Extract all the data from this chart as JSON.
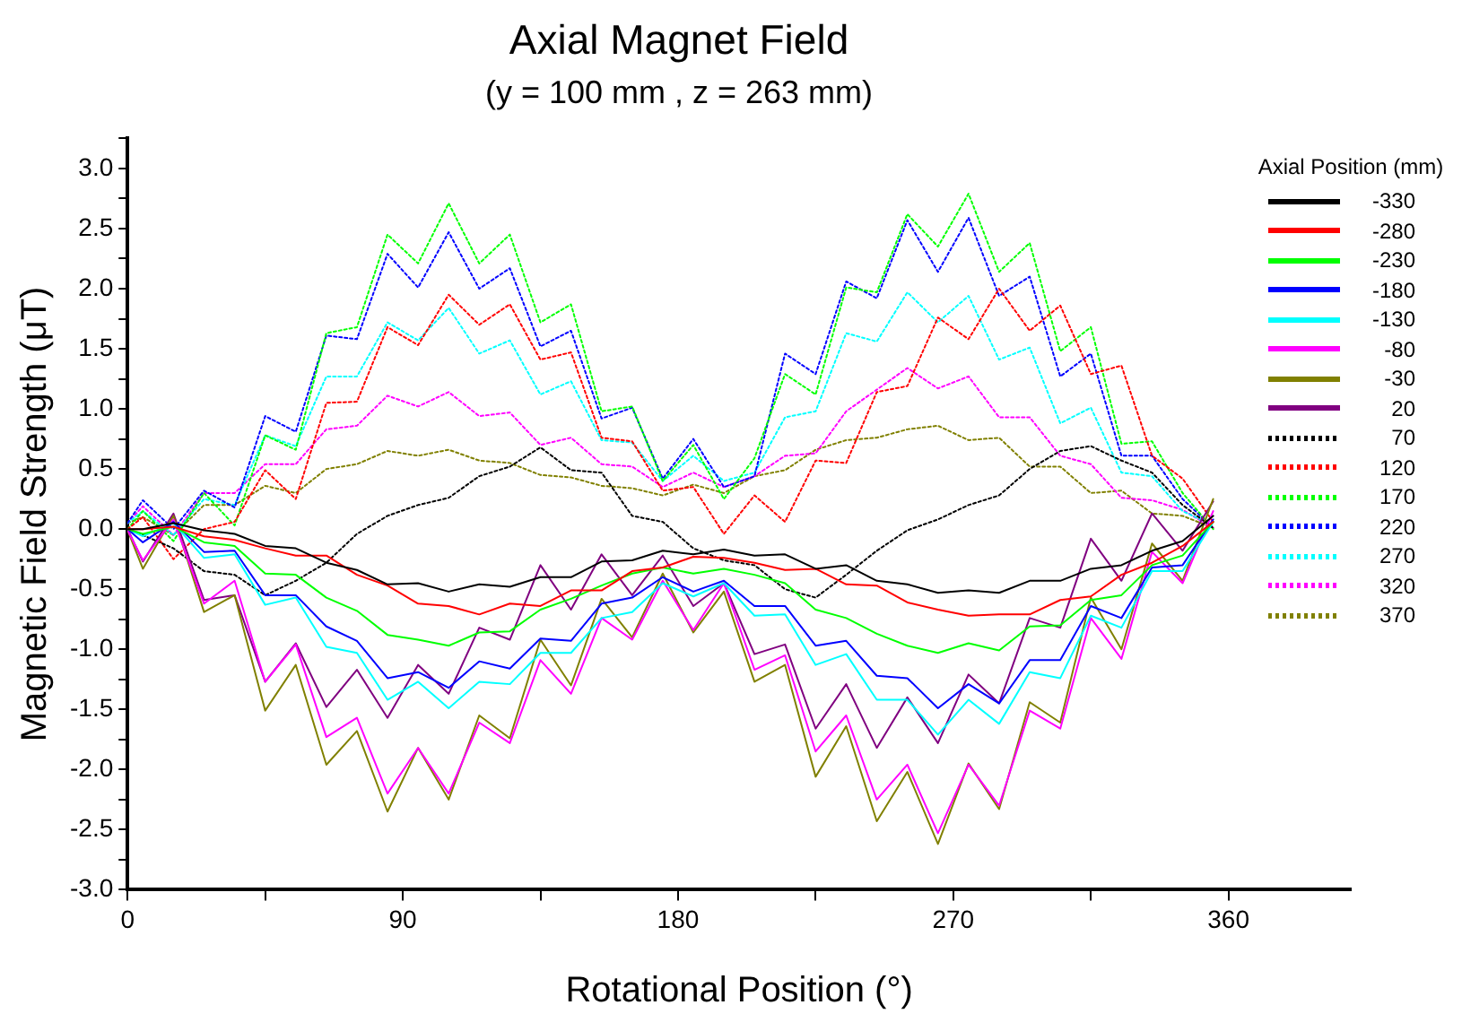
{
  "chart_data": {
    "type": "line",
    "title": "Axial Magnet Field",
    "subtitle": "(y = 100 mm , z = 263 mm)",
    "xlabel": "Rotational Position (°)",
    "ylabel": "Magnetic Field Strength (μT)",
    "legend_title": "Axial Position (mm)",
    "legend": "top right",
    "grid": false,
    "marker": "none",
    "x": [
      0,
      5,
      15,
      25,
      35,
      45,
      55,
      65,
      75,
      85,
      95,
      105,
      115,
      125,
      135,
      145,
      155,
      165,
      175,
      185,
      195,
      205,
      215,
      225,
      235,
      245,
      255,
      265,
      275,
      285,
      295,
      305,
      315,
      325,
      335,
      345,
      355
    ],
    "xlim": [
      0,
      400
    ],
    "xticks": [
      0,
      {
        "value": 45,
        "label": null
      },
      90,
      {
        "value": 135,
        "label": null
      },
      180,
      {
        "value": 225,
        "label": null
      },
      270,
      {
        "value": 315,
        "label": null
      },
      360
    ],
    "ylim": [
      -3,
      3.25
    ],
    "yticks": [
      {
        "value": -3,
        "label": "-3.0"
      },
      {
        "value": -2.75,
        "label": null
      },
      {
        "value": -2.5,
        "label": "-2.5"
      },
      {
        "value": -2.25,
        "label": null
      },
      {
        "value": -2,
        "label": "-2.0"
      },
      {
        "value": -1.75,
        "label": null
      },
      {
        "value": -1.5,
        "label": "-1.5"
      },
      {
        "value": -1.25,
        "label": null
      },
      {
        "value": -1,
        "label": "-1.0"
      },
      {
        "value": -0.75,
        "label": null
      },
      {
        "value": -0.5,
        "label": "-0.5"
      },
      {
        "value": -0.25,
        "label": null
      },
      {
        "value": 0,
        "label": "0.0"
      },
      {
        "value": 0.25,
        "label": null
      },
      {
        "value": 0.5,
        "label": "0.5"
      },
      {
        "value": 0.75,
        "label": null
      },
      {
        "value": 1,
        "label": "1.0"
      },
      {
        "value": 1.25,
        "label": null
      },
      {
        "value": 1.5,
        "label": "1.5"
      },
      {
        "value": 1.75,
        "label": null
      },
      {
        "value": 2,
        "label": "2.0"
      },
      {
        "value": 2.25,
        "label": null
      },
      {
        "value": 2.5,
        "label": "2.5"
      },
      {
        "value": 2.75,
        "label": null
      },
      {
        "value": 3,
        "label": "3.0"
      },
      {
        "value": 3.25,
        "label": null
      }
    ],
    "series": [
      {
        "name": "-330",
        "color": "#000000",
        "line_style": "solid",
        "values": [
          0,
          0,
          0.05,
          -0.01,
          -0.04,
          -0.14,
          -0.16,
          -0.28,
          -0.34,
          -0.46,
          -0.45,
          -0.52,
          -0.46,
          -0.48,
          -0.4,
          -0.4,
          -0.27,
          -0.26,
          -0.18,
          -0.21,
          -0.17,
          -0.22,
          -0.21,
          -0.33,
          -0.3,
          -0.43,
          -0.46,
          -0.53,
          -0.51,
          -0.53,
          -0.43,
          -0.43,
          -0.33,
          -0.3,
          -0.18,
          -0.1,
          0.11
        ]
      },
      {
        "name": "-280",
        "color": "#ff0000",
        "line_style": "solid",
        "values": [
          0,
          0,
          0.02,
          -0.06,
          -0.09,
          -0.16,
          -0.22,
          -0.22,
          -0.38,
          -0.47,
          -0.62,
          -0.64,
          -0.71,
          -0.62,
          -0.64,
          -0.51,
          -0.51,
          -0.35,
          -0.32,
          -0.23,
          -0.24,
          -0.28,
          -0.34,
          -0.33,
          -0.46,
          -0.47,
          -0.61,
          -0.67,
          -0.72,
          -0.71,
          -0.71,
          -0.59,
          -0.56,
          -0.38,
          -0.28,
          -0.14,
          0.06
        ]
      },
      {
        "name": "-230",
        "color": "#00ff00",
        "line_style": "solid",
        "values": [
          0,
          -0.04,
          0.02,
          -0.11,
          -0.14,
          -0.37,
          -0.38,
          -0.57,
          -0.68,
          -0.88,
          -0.92,
          -0.97,
          -0.86,
          -0.85,
          -0.67,
          -0.58,
          -0.47,
          -0.37,
          -0.32,
          -0.37,
          -0.33,
          -0.38,
          -0.45,
          -0.67,
          -0.74,
          -0.87,
          -0.97,
          -1.03,
          -0.95,
          -1.01,
          -0.81,
          -0.8,
          -0.59,
          -0.55,
          -0.3,
          -0.22,
          0.06
        ]
      },
      {
        "name": "-180",
        "color": "#0000ff",
        "line_style": "solid",
        "values": [
          0,
          -0.11,
          0.06,
          -0.19,
          -0.18,
          -0.55,
          -0.55,
          -0.81,
          -0.93,
          -1.24,
          -1.19,
          -1.32,
          -1.1,
          -1.16,
          -0.91,
          -0.93,
          -0.62,
          -0.57,
          -0.4,
          -0.52,
          -0.43,
          -0.64,
          -0.64,
          -0.97,
          -0.93,
          -1.22,
          -1.24,
          -1.49,
          -1.29,
          -1.45,
          -1.09,
          -1.09,
          -0.64,
          -0.74,
          -0.32,
          -0.3,
          0.08
        ]
      },
      {
        "name": "-130",
        "color": "#00ffff",
        "line_style": "solid",
        "values": [
          0,
          -0.06,
          0.05,
          -0.24,
          -0.21,
          -0.63,
          -0.57,
          -0.98,
          -1.03,
          -1.42,
          -1.27,
          -1.49,
          -1.27,
          -1.29,
          -1.03,
          -1.03,
          -0.74,
          -0.69,
          -0.45,
          -0.56,
          -0.45,
          -0.72,
          -0.71,
          -1.13,
          -1.04,
          -1.42,
          -1.42,
          -1.71,
          -1.42,
          -1.62,
          -1.19,
          -1.24,
          -0.72,
          -0.82,
          -0.35,
          -0.35,
          0.06
        ]
      },
      {
        "name": "-80",
        "color": "#ff00ff",
        "line_style": "solid",
        "values": [
          -0.01,
          -0.26,
          0.08,
          -0.62,
          -0.43,
          -1.27,
          -0.96,
          -1.73,
          -1.57,
          -2.2,
          -1.82,
          -2.2,
          -1.61,
          -1.78,
          -1.09,
          -1.37,
          -0.74,
          -0.92,
          -0.43,
          -0.84,
          -0.45,
          -1.17,
          -1.05,
          -1.85,
          -1.55,
          -2.25,
          -1.96,
          -2.53,
          -1.96,
          -2.3,
          -1.51,
          -1.66,
          -0.74,
          -1.08,
          -0.19,
          -0.45,
          0.15
        ]
      },
      {
        "name": "-30",
        "color": "#808000",
        "line_style": "solid",
        "values": [
          -0.01,
          -0.33,
          0.11,
          -0.69,
          -0.55,
          -1.51,
          -1.13,
          -1.96,
          -1.68,
          -2.35,
          -1.82,
          -2.25,
          -1.55,
          -1.74,
          -0.92,
          -1.3,
          -0.58,
          -0.9,
          -0.37,
          -0.86,
          -0.52,
          -1.27,
          -1.13,
          -2.06,
          -1.64,
          -2.43,
          -2.02,
          -2.62,
          -1.95,
          -2.33,
          -1.44,
          -1.61,
          -0.57,
          -1.0,
          -0.12,
          -0.43,
          0.25
        ]
      },
      {
        "name": "20",
        "color": "#800080",
        "line_style": "solid",
        "values": [
          0,
          -0.27,
          0.13,
          -0.59,
          -0.55,
          -1.27,
          -0.95,
          -1.48,
          -1.17,
          -1.57,
          -1.13,
          -1.37,
          -0.82,
          -0.92,
          -0.3,
          -0.67,
          -0.21,
          -0.55,
          -0.22,
          -0.64,
          -0.45,
          -1.04,
          -0.96,
          -1.66,
          -1.29,
          -1.82,
          -1.4,
          -1.78,
          -1.21,
          -1.45,
          -0.74,
          -0.82,
          -0.08,
          -0.43,
          0.13,
          -0.18,
          0.23
        ]
      },
      {
        "name": "70",
        "color": "#000000",
        "line_style": "dotted",
        "values": [
          0,
          -0.05,
          -0.16,
          -0.35,
          -0.38,
          -0.55,
          -0.43,
          -0.28,
          -0.04,
          0.11,
          0.2,
          0.26,
          0.44,
          0.52,
          0.68,
          0.49,
          0.47,
          0.11,
          0.06,
          -0.16,
          -0.26,
          -0.3,
          -0.5,
          -0.57,
          -0.38,
          -0.18,
          -0.01,
          0.08,
          0.2,
          0.28,
          0.5,
          0.65,
          0.69,
          0.57,
          0.47,
          0.2,
          0.01
        ]
      },
      {
        "name": "120",
        "color": "#ff0000",
        "line_style": "dotted",
        "values": [
          0,
          0.1,
          -0.25,
          0,
          0.06,
          0.49,
          0.25,
          1.05,
          1.06,
          1.68,
          1.53,
          1.95,
          1.7,
          1.87,
          1.41,
          1.47,
          0.76,
          0.73,
          0.32,
          0.35,
          -0.04,
          0.28,
          0.06,
          0.57,
          0.55,
          1.14,
          1.19,
          1.76,
          1.58,
          2.0,
          1.65,
          1.86,
          1.29,
          1.36,
          0.61,
          0.42,
          0.06
        ]
      },
      {
        "name": "170",
        "color": "#00ff00",
        "line_style": "dotted",
        "values": [
          0,
          0.15,
          -0.1,
          0.3,
          0.03,
          0.78,
          0.66,
          1.63,
          1.68,
          2.45,
          2.21,
          2.71,
          2.21,
          2.45,
          1.72,
          1.87,
          0.98,
          1.02,
          0.4,
          0.7,
          0.25,
          0.59,
          1.29,
          1.12,
          2.01,
          1.97,
          2.62,
          2.35,
          2.79,
          2.14,
          2.38,
          1.48,
          1.68,
          0.71,
          0.73,
          0.3,
          0
        ]
      },
      {
        "name": "220",
        "color": "#0000ff",
        "line_style": "dotted",
        "values": [
          0.05,
          0.24,
          0,
          0.32,
          0.18,
          0.94,
          0.81,
          1.61,
          1.58,
          2.29,
          2.01,
          2.47,
          2.0,
          2.17,
          1.52,
          1.65,
          0.92,
          1.01,
          0.42,
          0.75,
          0.35,
          0.44,
          1.46,
          1.29,
          2.06,
          1.92,
          2.57,
          2.14,
          2.59,
          1.94,
          2.1,
          1.27,
          1.46,
          0.61,
          0.61,
          0.25,
          0.01
        ]
      },
      {
        "name": "270",
        "color": "#00ffff",
        "line_style": "dotted",
        "values": [
          0.05,
          0.15,
          -0.05,
          0.25,
          0.2,
          0.78,
          0.69,
          1.27,
          1.27,
          1.72,
          1.57,
          1.84,
          1.46,
          1.57,
          1.12,
          1.23,
          0.74,
          0.72,
          0.4,
          0.61,
          0.4,
          0.47,
          0.93,
          0.98,
          1.63,
          1.56,
          1.97,
          1.72,
          1.94,
          1.41,
          1.51,
          0.88,
          1.01,
          0.47,
          0.44,
          0.15,
          0.03
        ]
      },
      {
        "name": "320",
        "color": "#ff00ff",
        "line_style": "dotted",
        "values": [
          0.05,
          0.19,
          -0.05,
          0.3,
          0.3,
          0.54,
          0.54,
          0.83,
          0.86,
          1.11,
          1.02,
          1.14,
          0.94,
          0.97,
          0.7,
          0.76,
          0.54,
          0.52,
          0.35,
          0.47,
          0.35,
          0.44,
          0.61,
          0.63,
          0.98,
          1.16,
          1.34,
          1.17,
          1.27,
          0.93,
          0.93,
          0.61,
          0.54,
          0.26,
          0.24,
          0.16,
          0.01
        ]
      },
      {
        "name": "370",
        "color": "#808000",
        "line_style": "dotted",
        "values": [
          0.05,
          0.1,
          -0.05,
          0.2,
          0.2,
          0.36,
          0.3,
          0.5,
          0.54,
          0.65,
          0.61,
          0.66,
          0.57,
          0.55,
          0.45,
          0.43,
          0.36,
          0.34,
          0.28,
          0.37,
          0.3,
          0.44,
          0.49,
          0.66,
          0.74,
          0.76,
          0.83,
          0.86,
          0.74,
          0.76,
          0.52,
          0.52,
          0.3,
          0.32,
          0.13,
          0.11,
          0.01
        ]
      }
    ]
  }
}
